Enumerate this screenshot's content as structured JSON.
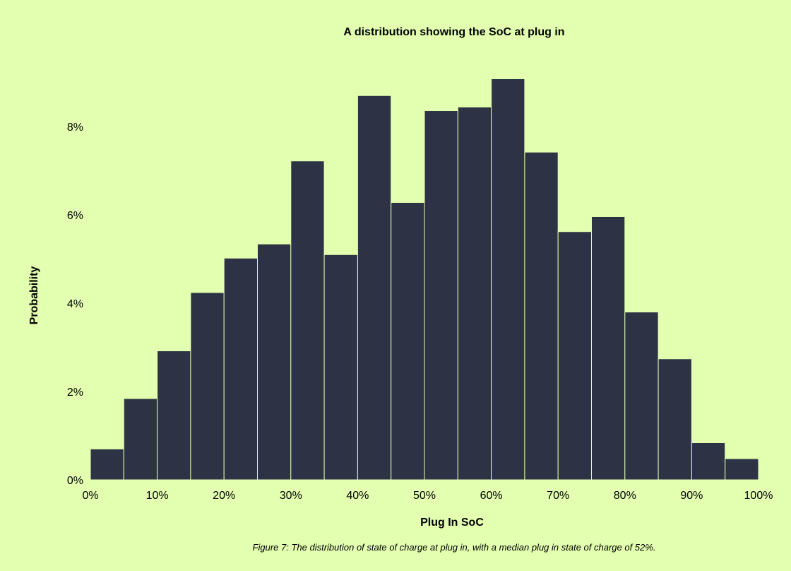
{
  "colors": {
    "background": "#e3ffb0",
    "bar_fill": "#2d3344",
    "bar_edge": "#e3ffb0",
    "text": "#000000"
  },
  "caption": "Figure 7: The distribution of state of charge at plug in, with a median plug in state of charge of 52%.",
  "chart_data": {
    "type": "bar",
    "title": "A distribution showing the SoC at plug in",
    "xlabel": "Plug In SoC",
    "ylabel": "Probability",
    "bin_width": 5,
    "bins": [
      {
        "start": 0,
        "end": 5,
        "value": 0.7
      },
      {
        "start": 5,
        "end": 10,
        "value": 1.84
      },
      {
        "start": 10,
        "end": 15,
        "value": 2.92
      },
      {
        "start": 15,
        "end": 20,
        "value": 4.24
      },
      {
        "start": 20,
        "end": 25,
        "value": 5.02
      },
      {
        "start": 25,
        "end": 30,
        "value": 5.34
      },
      {
        "start": 30,
        "end": 35,
        "value": 7.22
      },
      {
        "start": 35,
        "end": 40,
        "value": 5.1
      },
      {
        "start": 40,
        "end": 45,
        "value": 8.7
      },
      {
        "start": 45,
        "end": 50,
        "value": 6.28
      },
      {
        "start": 50,
        "end": 55,
        "value": 8.36
      },
      {
        "start": 55,
        "end": 60,
        "value": 8.44
      },
      {
        "start": 60,
        "end": 65,
        "value": 9.08
      },
      {
        "start": 65,
        "end": 70,
        "value": 7.42
      },
      {
        "start": 70,
        "end": 75,
        "value": 5.62
      },
      {
        "start": 75,
        "end": 80,
        "value": 5.96
      },
      {
        "start": 80,
        "end": 85,
        "value": 3.8
      },
      {
        "start": 85,
        "end": 90,
        "value": 2.74
      },
      {
        "start": 90,
        "end": 95,
        "value": 0.84
      },
      {
        "start": 95,
        "end": 100,
        "value": 0.48
      }
    ],
    "xlim": [
      0,
      100
    ],
    "ylim": [
      0,
      9.6
    ],
    "x_ticks": [
      0,
      10,
      20,
      30,
      40,
      50,
      60,
      70,
      80,
      90,
      100
    ],
    "x_tick_labels": [
      "0%",
      "10%",
      "20%",
      "30%",
      "40%",
      "50%",
      "60%",
      "70%",
      "80%",
      "90%",
      "100%"
    ],
    "y_ticks": [
      0,
      2,
      4,
      6,
      8
    ],
    "y_tick_labels": [
      "0%",
      "2%",
      "4%",
      "6%",
      "8%"
    ],
    "grid": false,
    "legend": "none"
  }
}
